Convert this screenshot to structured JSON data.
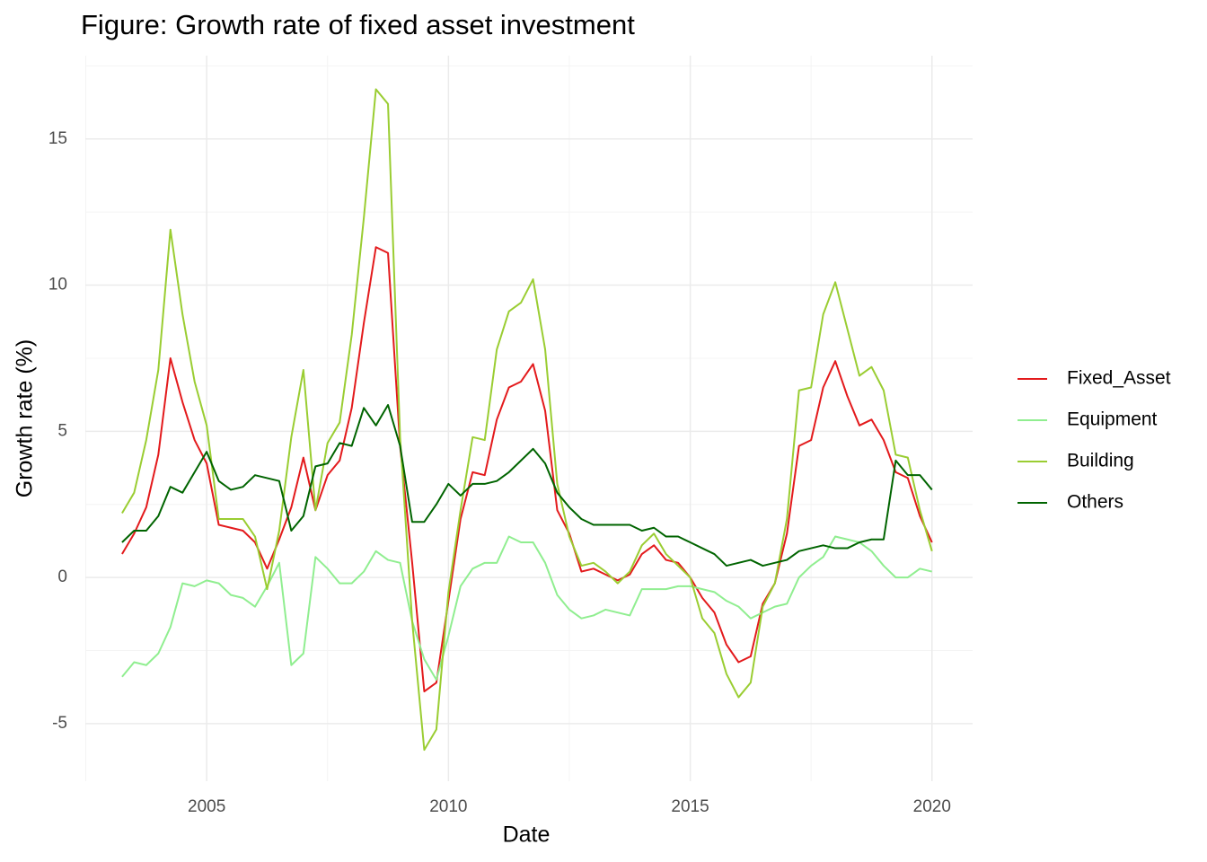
{
  "chart_data": {
    "type": "line",
    "title": "Figure: Growth rate of fixed asset investment",
    "xlabel": "Date",
    "ylabel": "Growth rate (%)",
    "x": [
      2003.25,
      2003.5,
      2003.75,
      2004,
      2004.25,
      2004.5,
      2004.75,
      2005,
      2005.25,
      2005.5,
      2005.75,
      2006,
      2006.25,
      2006.5,
      2006.75,
      2007,
      2007.25,
      2007.5,
      2007.75,
      2008,
      2008.25,
      2008.5,
      2008.75,
      2009,
      2009.25,
      2009.5,
      2009.75,
      2010,
      2010.25,
      2010.5,
      2010.75,
      2011,
      2011.25,
      2011.5,
      2011.75,
      2012,
      2012.25,
      2012.5,
      2012.75,
      2013,
      2013.25,
      2013.5,
      2013.75,
      2014,
      2014.25,
      2014.5,
      2014.75,
      2015,
      2015.25,
      2015.5,
      2015.75,
      2016,
      2016.25,
      2016.5,
      2016.75,
      2017,
      2017.25,
      2017.5,
      2017.75,
      2018,
      2018.25,
      2018.5,
      2018.75,
      2019,
      2019.25,
      2019.5,
      2019.75,
      2020
    ],
    "series": [
      {
        "name": "Fixed_Asset",
        "color": "#e31a1c",
        "values": [
          0.8,
          1.5,
          2.4,
          4.2,
          7.5,
          6.0,
          4.7,
          3.9,
          1.8,
          1.7,
          1.6,
          1.2,
          0.3,
          1.3,
          2.4,
          4.1,
          2.3,
          3.5,
          4.0,
          5.8,
          8.7,
          11.3,
          11.1,
          4.5,
          0.5,
          -3.9,
          -3.6,
          -0.8,
          2.0,
          3.6,
          3.5,
          5.4,
          6.5,
          6.7,
          7.3,
          5.7,
          2.3,
          1.5,
          0.2,
          0.3,
          0.1,
          -0.1,
          0.1,
          0.8,
          1.1,
          0.6,
          0.5,
          0.0,
          -0.7,
          -1.2,
          -2.3,
          -2.9,
          -2.7,
          -0.9,
          -0.2,
          1.5,
          4.5,
          4.7,
          6.5,
          7.4,
          6.2,
          5.2,
          5.4,
          4.7,
          3.6,
          3.4,
          2.1,
          1.2
        ]
      },
      {
        "name": "Equipment",
        "color": "#90ee90",
        "values": [
          -3.4,
          -2.9,
          -3.0,
          -2.6,
          -1.7,
          -0.2,
          -0.3,
          -0.1,
          -0.2,
          -0.6,
          -0.7,
          -1.0,
          -0.3,
          0.5,
          -3.0,
          -2.6,
          0.7,
          0.3,
          -0.2,
          -0.2,
          0.2,
          0.9,
          0.6,
          0.5,
          -1.5,
          -2.8,
          -3.5,
          -2.0,
          -0.3,
          0.3,
          0.5,
          0.5,
          1.4,
          1.2,
          1.2,
          0.5,
          -0.6,
          -1.1,
          -1.4,
          -1.3,
          -1.1,
          -1.2,
          -1.3,
          -0.4,
          -0.4,
          -0.4,
          -0.3,
          -0.3,
          -0.4,
          -0.5,
          -0.8,
          -1.0,
          -1.4,
          -1.2,
          -1.0,
          -0.9,
          0.0,
          0.4,
          0.7,
          1.4,
          1.3,
          1.2,
          0.9,
          0.4,
          0.0,
          0.0,
          0.3,
          0.2
        ]
      },
      {
        "name": "Building",
        "color": "#9acd32",
        "values": [
          2.2,
          2.9,
          4.7,
          7.1,
          11.9,
          9.0,
          6.7,
          5.2,
          2.0,
          2.0,
          2.0,
          1.4,
          -0.4,
          1.6,
          4.8,
          7.1,
          2.3,
          4.6,
          5.3,
          8.3,
          12.3,
          16.7,
          16.2,
          4.8,
          -1.5,
          -5.9,
          -5.2,
          -0.5,
          2.3,
          4.8,
          4.7,
          7.8,
          9.1,
          9.4,
          10.2,
          7.8,
          3.2,
          1.4,
          0.4,
          0.5,
          0.2,
          -0.2,
          0.2,
          1.1,
          1.5,
          0.8,
          0.4,
          0.0,
          -1.4,
          -1.9,
          -3.3,
          -4.1,
          -3.6,
          -1.0,
          -0.2,
          2.0,
          6.4,
          6.5,
          9.0,
          10.1,
          8.5,
          6.9,
          7.2,
          6.4,
          4.2,
          4.1,
          2.3,
          0.9
        ]
      },
      {
        "name": "Others",
        "color": "#006400",
        "values": [
          1.2,
          1.6,
          1.6,
          2.1,
          3.1,
          2.9,
          3.6,
          4.3,
          3.3,
          3.0,
          3.1,
          3.5,
          3.4,
          3.3,
          1.6,
          2.1,
          3.8,
          3.9,
          4.6,
          4.5,
          5.8,
          5.2,
          5.9,
          4.5,
          1.9,
          1.9,
          2.5,
          3.2,
          2.8,
          3.2,
          3.2,
          3.3,
          3.6,
          4.0,
          4.4,
          3.9,
          2.9,
          2.4,
          2.0,
          1.8,
          1.8,
          1.8,
          1.8,
          1.6,
          1.7,
          1.4,
          1.4,
          1.2,
          1.0,
          0.8,
          0.4,
          0.5,
          0.6,
          0.4,
          0.5,
          0.6,
          0.9,
          1.0,
          1.1,
          1.0,
          1.0,
          1.2,
          1.3,
          1.3,
          4.0,
          3.5,
          3.5,
          3.0
        ]
      }
    ],
    "xlim": [
      2002.49,
      2020.84
    ],
    "ylim": [
      -6.97,
      17.85
    ],
    "xticks": [
      2005,
      2010,
      2015,
      2020
    ],
    "yticks": [
      -5,
      0,
      5,
      10,
      15
    ],
    "xminorticks": [
      2002.5,
      2007.5,
      2012.5,
      2017.5
    ],
    "yminorticks": [
      -2.5,
      2.5,
      7.5,
      12.5,
      17.5
    ],
    "grid": true,
    "legend": "right"
  }
}
